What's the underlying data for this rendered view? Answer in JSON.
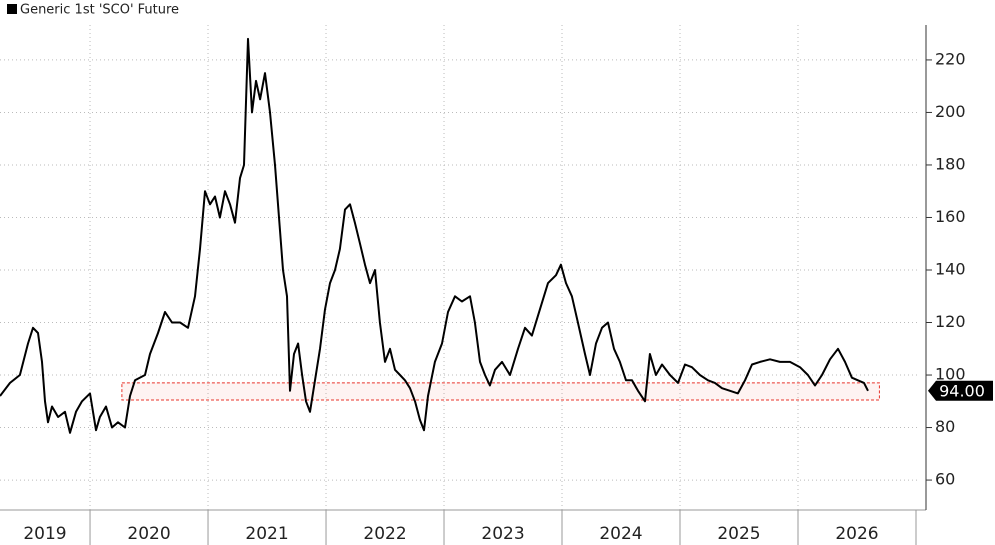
{
  "chart_data": {
    "type": "line",
    "title": "Generic 1st 'SCO' Future",
    "x": [
      2019.237,
      2019.322,
      2019.406,
      2019.474,
      2019.517,
      2019.559,
      2019.593,
      2019.618,
      2019.644,
      2019.678,
      2019.729,
      2019.788,
      2019.83,
      2019.881,
      2019.932,
      2020.0,
      2020.051,
      2020.084,
      2020.135,
      2020.186,
      2020.237,
      2020.296,
      2020.339,
      2020.381,
      2020.466,
      2020.508,
      2020.576,
      2020.635,
      2020.695,
      2020.763,
      2020.83,
      2020.89,
      2020.932,
      2020.974,
      2021.017,
      2021.059,
      2021.101,
      2021.144,
      2021.186,
      2021.229,
      2021.271,
      2021.305,
      2021.339,
      2021.373,
      2021.407,
      2021.441,
      2021.483,
      2021.525,
      2021.568,
      2021.61,
      2021.635,
      2021.669,
      2021.695,
      2021.729,
      2021.763,
      2021.797,
      2021.83,
      2021.864,
      2021.907,
      2021.949,
      2021.991,
      2022.034,
      2022.076,
      2022.118,
      2022.161,
      2022.203,
      2022.245,
      2022.288,
      2022.33,
      2022.373,
      2022.415,
      2022.457,
      2022.5,
      2022.542,
      2022.585,
      2022.627,
      2022.669,
      2022.712,
      2022.754,
      2022.796,
      2022.83,
      2022.864,
      2022.923,
      2022.983,
      2023.034,
      2023.093,
      2023.152,
      2023.22,
      2023.262,
      2023.305,
      2023.347,
      2023.389,
      2023.432,
      2023.491,
      2023.559,
      2023.627,
      2023.686,
      2023.745,
      2023.813,
      2023.881,
      2023.949,
      2023.991,
      2024.034,
      2024.084,
      2024.135,
      2024.195,
      2024.237,
      2024.288,
      2024.339,
      2024.39,
      2024.441,
      2024.491,
      2024.542,
      2024.593,
      2024.644,
      2024.703,
      2024.745,
      2024.796,
      2024.847,
      2024.915,
      2024.983,
      2025.042,
      2025.101,
      2025.169,
      2025.237,
      2025.296,
      2025.356,
      2025.424,
      2025.491,
      2025.551,
      2025.61,
      2025.678,
      2025.763,
      2025.847,
      2025.932,
      2026.017,
      2026.084,
      2026.144,
      2026.203,
      2026.271,
      2026.339,
      2026.398,
      2026.457,
      2026.508,
      2026.559,
      2026.593
    ],
    "series": [
      {
        "name": "Generic 1st 'SCO' Future",
        "color": "#000000",
        "values": [
          92,
          97,
          100,
          112,
          118,
          116,
          105,
          90,
          82,
          88,
          84,
          86,
          78,
          86,
          90,
          93,
          79,
          84,
          88,
          80,
          82,
          80,
          92,
          98,
          100,
          108,
          116,
          124,
          120,
          120,
          118,
          130,
          148,
          170,
          165,
          168,
          160,
          170,
          165,
          158,
          175,
          180,
          228,
          200,
          212,
          205,
          215,
          200,
          180,
          155,
          140,
          130,
          94,
          108,
          112,
          100,
          90,
          86,
          98,
          110,
          125,
          135,
          140,
          148,
          163,
          165,
          158,
          150,
          142,
          135,
          140,
          120,
          105,
          110,
          102,
          100,
          98,
          95,
          90,
          83,
          79,
          92,
          105,
          112,
          124,
          130,
          128,
          130,
          120,
          105,
          100,
          96,
          102,
          105,
          100,
          110,
          118,
          115,
          125,
          135,
          138,
          142,
          135,
          130,
          120,
          108,
          100,
          112,
          118,
          120,
          110,
          105,
          98,
          98,
          94,
          90,
          108,
          100,
          104,
          100,
          97,
          104,
          103,
          100,
          98,
          97,
          95,
          94,
          93,
          98,
          104,
          105,
          106,
          105,
          105,
          103,
          100,
          96,
          100,
          106,
          110,
          105,
          99,
          98,
          97,
          94
        ]
      }
    ],
    "xlim": [
      2019.237,
      2027.017
    ],
    "xticks": [
      {
        "value": 2019.5,
        "label": "2019"
      },
      {
        "value": 2020.5,
        "label": "2020"
      },
      {
        "value": 2021.5,
        "label": "2021"
      },
      {
        "value": 2022.5,
        "label": "2022"
      },
      {
        "value": 2023.5,
        "label": "2023"
      },
      {
        "value": 2024.5,
        "label": "2024"
      },
      {
        "value": 2025.5,
        "label": "2025"
      },
      {
        "value": 2026.5,
        "label": "2026"
      }
    ],
    "ylim": [
      48.6,
      233.3
    ],
    "yticks": [
      60,
      80,
      100,
      120,
      140,
      160,
      180,
      200,
      220
    ],
    "grid": true,
    "current": {
      "value": 94,
      "label": "94.00"
    },
    "highlight": {
      "x": [
        2020.27,
        2026.69
      ],
      "y": [
        90.5,
        97
      ],
      "color": "#e8332a"
    }
  }
}
